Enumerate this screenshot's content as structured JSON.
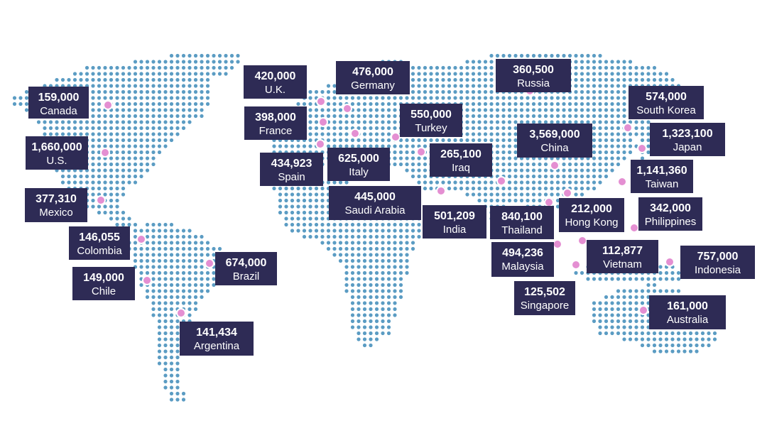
{
  "markers": [
    {
      "value": "159,000",
      "name": "Canada"
    },
    {
      "value": "1,660,000",
      "name": "U.S."
    },
    {
      "value": "377,310",
      "name": "Mexico"
    },
    {
      "value": "146,055",
      "name": "Colombia"
    },
    {
      "value": "149,000",
      "name": "Chile"
    },
    {
      "value": "674,000",
      "name": "Brazil"
    },
    {
      "value": "141,434",
      "name": "Argentina"
    },
    {
      "value": "420,000",
      "name": "U.K."
    },
    {
      "value": "398,000",
      "name": "France"
    },
    {
      "value": "434,923",
      "name": "Spain"
    },
    {
      "value": "625,000",
      "name": "Italy"
    },
    {
      "value": "476,000",
      "name": "Germany"
    },
    {
      "value": "550,000",
      "name": "Turkey"
    },
    {
      "value": "265,100",
      "name": "Iraq"
    },
    {
      "value": "445,000",
      "name": "Saudi Arabia"
    },
    {
      "value": "501,209",
      "name": "India"
    },
    {
      "value": "360,500",
      "name": "Russia"
    },
    {
      "value": "3,569,000",
      "name": "China"
    },
    {
      "value": "574,000",
      "name": "South Korea"
    },
    {
      "value": "1,323,100",
      "name": "Japan"
    },
    {
      "value": "1,141,360",
      "name": "Taiwan"
    },
    {
      "value": "212,000",
      "name": "Hong Kong"
    },
    {
      "value": "840,100",
      "name": "Thailand"
    },
    {
      "value": "342,000",
      "name": "Philippines"
    },
    {
      "value": "494,236",
      "name": "Malaysia"
    },
    {
      "value": "112,877",
      "name": "Vietnam"
    },
    {
      "value": "125,502",
      "name": "Singapore"
    },
    {
      "value": "757,000",
      "name": "Indonesia"
    },
    {
      "value": "161,000",
      "name": "Australia"
    }
  ]
}
